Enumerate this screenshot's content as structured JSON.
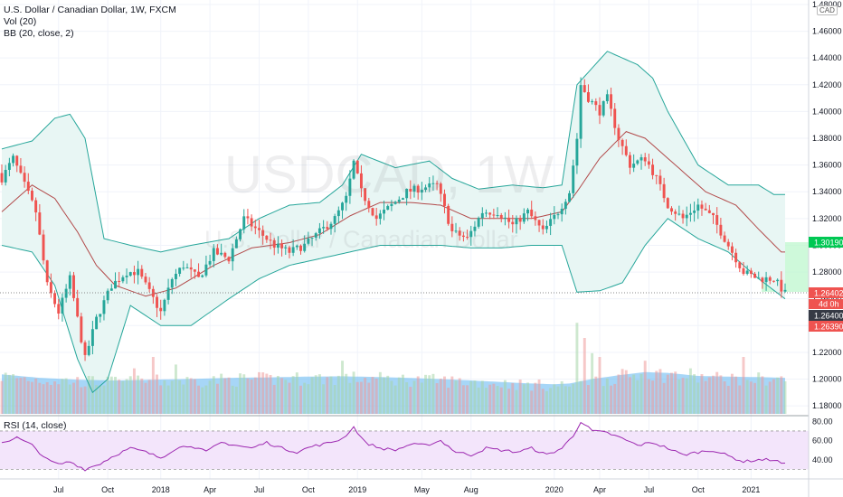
{
  "legend": {
    "title": "U.S. Dollar / Canadian Dollar, 1W, FXCM",
    "vol": "Vol (20)",
    "bb": "BB (20, close, 2)",
    "rsi": "RSI (14, close)"
  },
  "watermark": {
    "symbol": "USDCAD, 1W",
    "name": "U.S. Dollar / Canadian Dollar"
  },
  "currency_badge": "CAD",
  "colors": {
    "up": "#26a69a",
    "down": "#ef5350",
    "bb_band": "#26a69a",
    "bb_mid": "#b24a4a",
    "bb_fill": "#e8f6f4",
    "vol_area": "#5fb4f0",
    "rsi_line": "#9c27b0",
    "rsi_fill": "#f3e5fb",
    "price_tag": "#ef5350",
    "green_box": "#b9f6ca",
    "dark_tag": "#363a45"
  },
  "price_tags": {
    "last": "1.26402",
    "countdown": "4d 0h",
    "bid": "1.26400",
    "ask": "1.26390",
    "target": "1.30190"
  },
  "chart_data": [
    {
      "type": "candlestick",
      "title": "U.S. Dollar / Canadian Dollar, 1W, FXCM",
      "y_ticks": [
        "1.18000",
        "1.20000",
        "1.22000",
        "1.24000",
        "1.26000",
        "1.28000",
        "1.30000",
        "1.32000",
        "1.34000",
        "1.36000",
        "1.38000",
        "1.40000",
        "1.42000",
        "1.44000",
        "1.46000",
        "1.48000"
      ],
      "ylim": [
        1.174,
        1.482
      ],
      "x_ticks": [
        "Jul",
        "Oct",
        "2018",
        "Apr",
        "Jul",
        "Oct",
        "2019",
        "May",
        "Aug",
        "2020",
        "Apr",
        "Jul",
        "Oct",
        "2021"
      ],
      "x_tick_index": [
        15,
        28,
        42,
        55,
        68,
        81,
        94,
        111,
        124,
        146,
        158,
        171,
        184,
        198
      ],
      "close_path": [
        [
          0,
          1.35
        ],
        [
          3,
          1.365
        ],
        [
          6,
          1.345
        ],
        [
          9,
          1.325
        ],
        [
          12,
          1.27
        ],
        [
          15,
          1.25
        ],
        [
          18,
          1.275
        ],
        [
          22,
          1.215
        ],
        [
          25,
          1.245
        ],
        [
          29,
          1.27
        ],
        [
          33,
          1.28
        ],
        [
          36,
          1.28
        ],
        [
          39,
          1.265
        ],
        [
          42,
          1.25
        ],
        [
          45,
          1.275
        ],
        [
          48,
          1.285
        ],
        [
          52,
          1.275
        ],
        [
          56,
          1.295
        ],
        [
          60,
          1.29
        ],
        [
          64,
          1.32
        ],
        [
          68,
          1.31
        ],
        [
          72,
          1.3
        ],
        [
          76,
          1.295
        ],
        [
          80,
          1.3
        ],
        [
          84,
          1.31
        ],
        [
          88,
          1.32
        ],
        [
          91,
          1.335
        ],
        [
          93,
          1.362
        ],
        [
          95,
          1.34
        ],
        [
          99,
          1.32
        ],
        [
          103,
          1.33
        ],
        [
          107,
          1.34
        ],
        [
          111,
          1.343
        ],
        [
          115,
          1.345
        ],
        [
          119,
          1.31
        ],
        [
          123,
          1.305
        ],
        [
          127,
          1.325
        ],
        [
          131,
          1.325
        ],
        [
          135,
          1.315
        ],
        [
          139,
          1.325
        ],
        [
          143,
          1.31
        ],
        [
          147,
          1.325
        ],
        [
          150,
          1.34
        ],
        [
          152,
          1.38
        ],
        [
          153,
          1.42
        ],
        [
          155,
          1.41
        ],
        [
          158,
          1.4
        ],
        [
          160,
          1.41
        ],
        [
          163,
          1.38
        ],
        [
          166,
          1.36
        ],
        [
          170,
          1.365
        ],
        [
          173,
          1.35
        ],
        [
          176,
          1.33
        ],
        [
          180,
          1.32
        ],
        [
          184,
          1.33
        ],
        [
          188,
          1.32
        ],
        [
          192,
          1.3
        ],
        [
          196,
          1.28
        ],
        [
          200,
          1.275
        ],
        [
          204,
          1.275
        ],
        [
          207,
          1.264
        ]
      ],
      "bb_upper": [
        [
          0,
          1.372
        ],
        [
          8,
          1.378
        ],
        [
          14,
          1.395
        ],
        [
          18,
          1.398
        ],
        [
          22,
          1.38
        ],
        [
          27,
          1.305
        ],
        [
          34,
          1.3
        ],
        [
          42,
          1.295
        ],
        [
          50,
          1.3
        ],
        [
          60,
          1.305
        ],
        [
          68,
          1.32
        ],
        [
          76,
          1.33
        ],
        [
          84,
          1.332
        ],
        [
          90,
          1.345
        ],
        [
          95,
          1.368
        ],
        [
          104,
          1.358
        ],
        [
          113,
          1.363
        ],
        [
          119,
          1.35
        ],
        [
          126,
          1.342
        ],
        [
          135,
          1.345
        ],
        [
          143,
          1.343
        ],
        [
          148,
          1.345
        ],
        [
          152,
          1.42
        ],
        [
          160,
          1.445
        ],
        [
          168,
          1.435
        ],
        [
          172,
          1.425
        ],
        [
          176,
          1.4
        ],
        [
          184,
          1.36
        ],
        [
          192,
          1.345
        ],
        [
          200,
          1.345
        ],
        [
          204,
          1.338
        ]
      ],
      "bb_mid": [
        [
          0,
          1.325
        ],
        [
          8,
          1.345
        ],
        [
          14,
          1.335
        ],
        [
          20,
          1.31
        ],
        [
          25,
          1.285
        ],
        [
          30,
          1.27
        ],
        [
          38,
          1.262
        ],
        [
          46,
          1.268
        ],
        [
          56,
          1.285
        ],
        [
          66,
          1.298
        ],
        [
          76,
          1.302
        ],
        [
          84,
          1.308
        ],
        [
          92,
          1.322
        ],
        [
          100,
          1.332
        ],
        [
          108,
          1.332
        ],
        [
          116,
          1.33
        ],
        [
          124,
          1.32
        ],
        [
          132,
          1.32
        ],
        [
          140,
          1.32
        ],
        [
          148,
          1.325
        ],
        [
          152,
          1.34
        ],
        [
          158,
          1.365
        ],
        [
          165,
          1.385
        ],
        [
          170,
          1.38
        ],
        [
          178,
          1.36
        ],
        [
          186,
          1.34
        ],
        [
          194,
          1.33
        ],
        [
          200,
          1.312
        ],
        [
          206,
          1.295
        ]
      ],
      "bb_lower": [
        [
          0,
          1.3
        ],
        [
          8,
          1.295
        ],
        [
          14,
          1.27
        ],
        [
          20,
          1.215
        ],
        [
          24,
          1.19
        ],
        [
          28,
          1.2
        ],
        [
          34,
          1.255
        ],
        [
          42,
          1.24
        ],
        [
          50,
          1.24
        ],
        [
          60,
          1.26
        ],
        [
          68,
          1.275
        ],
        [
          76,
          1.285
        ],
        [
          84,
          1.29
        ],
        [
          92,
          1.295
        ],
        [
          100,
          1.3
        ],
        [
          108,
          1.3
        ],
        [
          116,
          1.3
        ],
        [
          124,
          1.298
        ],
        [
          132,
          1.298
        ],
        [
          140,
          1.3
        ],
        [
          148,
          1.3
        ],
        [
          152,
          1.265
        ],
        [
          158,
          1.266
        ],
        [
          164,
          1.272
        ],
        [
          170,
          1.3
        ],
        [
          176,
          1.32
        ],
        [
          184,
          1.305
        ],
        [
          192,
          1.295
        ],
        [
          200,
          1.275
        ],
        [
          207,
          1.26
        ]
      ]
    },
    {
      "type": "area",
      "title": "Vol (20)",
      "volume_ma_path": [
        [
          0,
          1.04
        ],
        [
          10,
          0.95
        ],
        [
          20,
          0.9
        ],
        [
          30,
          0.88
        ],
        [
          40,
          0.9
        ],
        [
          50,
          0.92
        ],
        [
          60,
          0.95
        ],
        [
          70,
          0.96
        ],
        [
          80,
          0.98
        ],
        [
          90,
          0.99
        ],
        [
          100,
          0.97
        ],
        [
          110,
          0.94
        ],
        [
          120,
          0.9
        ],
        [
          130,
          0.85
        ],
        [
          140,
          0.8
        ],
        [
          146,
          0.78
        ],
        [
          150,
          0.8
        ],
        [
          156,
          0.92
        ],
        [
          164,
          1.03
        ],
        [
          170,
          1.1
        ],
        [
          176,
          1.08
        ],
        [
          184,
          1.0
        ],
        [
          192,
          0.98
        ],
        [
          200,
          0.97
        ],
        [
          207,
          0.95
        ]
      ],
      "volume_spikes": [
        [
          35,
          1.2
        ],
        [
          40,
          1.5
        ],
        [
          46,
          1.3
        ],
        [
          90,
          1.4
        ],
        [
          100,
          1.1
        ],
        [
          152,
          2.4
        ],
        [
          154,
          2.0
        ],
        [
          156,
          1.6
        ],
        [
          158,
          1.5
        ],
        [
          170,
          1.4
        ],
        [
          182,
          1.2
        ],
        [
          196,
          1.5
        ]
      ]
    },
    {
      "type": "line",
      "title": "RSI (14, close)",
      "y_ticks": [
        "40.00",
        "60.00",
        "80.00"
      ],
      "ylim": [
        20,
        85
      ],
      "guides": [
        30,
        70
      ],
      "rsi_path": [
        [
          0,
          58
        ],
        [
          4,
          63
        ],
        [
          8,
          55
        ],
        [
          12,
          40
        ],
        [
          15,
          35
        ],
        [
          18,
          38
        ],
        [
          22,
          30
        ],
        [
          26,
          36
        ],
        [
          30,
          45
        ],
        [
          34,
          52
        ],
        [
          38,
          48
        ],
        [
          42,
          42
        ],
        [
          46,
          52
        ],
        [
          50,
          55
        ],
        [
          54,
          48
        ],
        [
          58,
          58
        ],
        [
          62,
          55
        ],
        [
          66,
          52
        ],
        [
          70,
          58
        ],
        [
          74,
          52
        ],
        [
          78,
          48
        ],
        [
          82,
          54
        ],
        [
          86,
          57
        ],
        [
          90,
          62
        ],
        [
          93,
          74
        ],
        [
          96,
          58
        ],
        [
          100,
          52
        ],
        [
          104,
          50
        ],
        [
          108,
          56
        ],
        [
          112,
          55
        ],
        [
          116,
          60
        ],
        [
          120,
          48
        ],
        [
          124,
          45
        ],
        [
          128,
          52
        ],
        [
          132,
          50
        ],
        [
          136,
          48
        ],
        [
          140,
          52
        ],
        [
          144,
          45
        ],
        [
          148,
          52
        ],
        [
          151,
          65
        ],
        [
          153,
          80
        ],
        [
          156,
          70
        ],
        [
          160,
          68
        ],
        [
          164,
          62
        ],
        [
          168,
          55
        ],
        [
          172,
          58
        ],
        [
          176,
          52
        ],
        [
          180,
          45
        ],
        [
          184,
          48
        ],
        [
          188,
          50
        ],
        [
          192,
          44
        ],
        [
          196,
          38
        ],
        [
          200,
          40
        ],
        [
          204,
          40
        ],
        [
          207,
          35
        ]
      ]
    }
  ]
}
